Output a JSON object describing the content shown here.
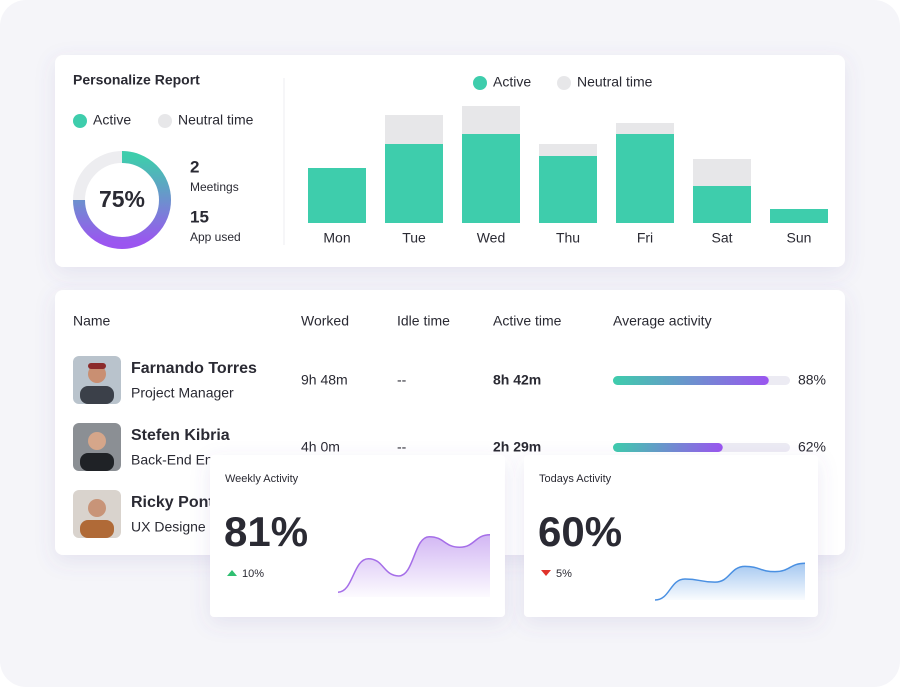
{
  "report": {
    "title": "Personalize Report",
    "legend": [
      "Active",
      "Neutral time"
    ],
    "donut": {
      "percent": 75,
      "label": "75%"
    },
    "stats": [
      {
        "value": 2,
        "label": "Meetings"
      },
      {
        "value": 15,
        "label": "App used"
      }
    ],
    "chart": {
      "type": "bar",
      "stacked": true,
      "categories": [
        "Mon",
        "Tue",
        "Wed",
        "Thu",
        "Fri",
        "Sat",
        "Sun"
      ],
      "series": [
        {
          "name": "Active",
          "color": "#3ecdac",
          "values": [
            55,
            79,
            89,
            67,
            89,
            37,
            14
          ]
        },
        {
          "name": "Neutral time",
          "color": "#e7e7e9",
          "values": [
            0,
            29,
            28,
            12,
            11,
            27,
            0
          ]
        }
      ],
      "ylim": [
        0,
        120
      ]
    }
  },
  "table": {
    "columns": [
      "Name",
      "Worked",
      "Idle time",
      "Active time",
      "Average activity"
    ],
    "rows": [
      {
        "name": "Farnando Torres",
        "role": "Project Manager",
        "worked": "9h 48m",
        "idle": "--",
        "active": "8h 42m",
        "activity": 88,
        "activity_label": "88%"
      },
      {
        "name": "Stefen Kibria",
        "role": "Back-End En",
        "worked": "4h 0m",
        "idle": "--",
        "active": "2h 29m",
        "activity": 62,
        "activity_label": "62%"
      },
      {
        "name": "Ricky Pont",
        "role": "UX Designe"
      }
    ]
  },
  "cards": [
    {
      "title": "Weekly Activity",
      "label": "81%",
      "change": {
        "label": "10%",
        "direction": "up"
      },
      "trend": [
        5,
        40,
        22,
        63,
        52,
        65
      ],
      "ylim": [
        0,
        70
      ],
      "color": "#a56ee8"
    },
    {
      "title": "Todays Activity",
      "label": "60%",
      "change": {
        "label": "5%",
        "direction": "down"
      },
      "trend": [
        0,
        20,
        17,
        32,
        27,
        35
      ],
      "ylim": [
        0,
        40
      ],
      "color": "#4a90e2"
    }
  ]
}
